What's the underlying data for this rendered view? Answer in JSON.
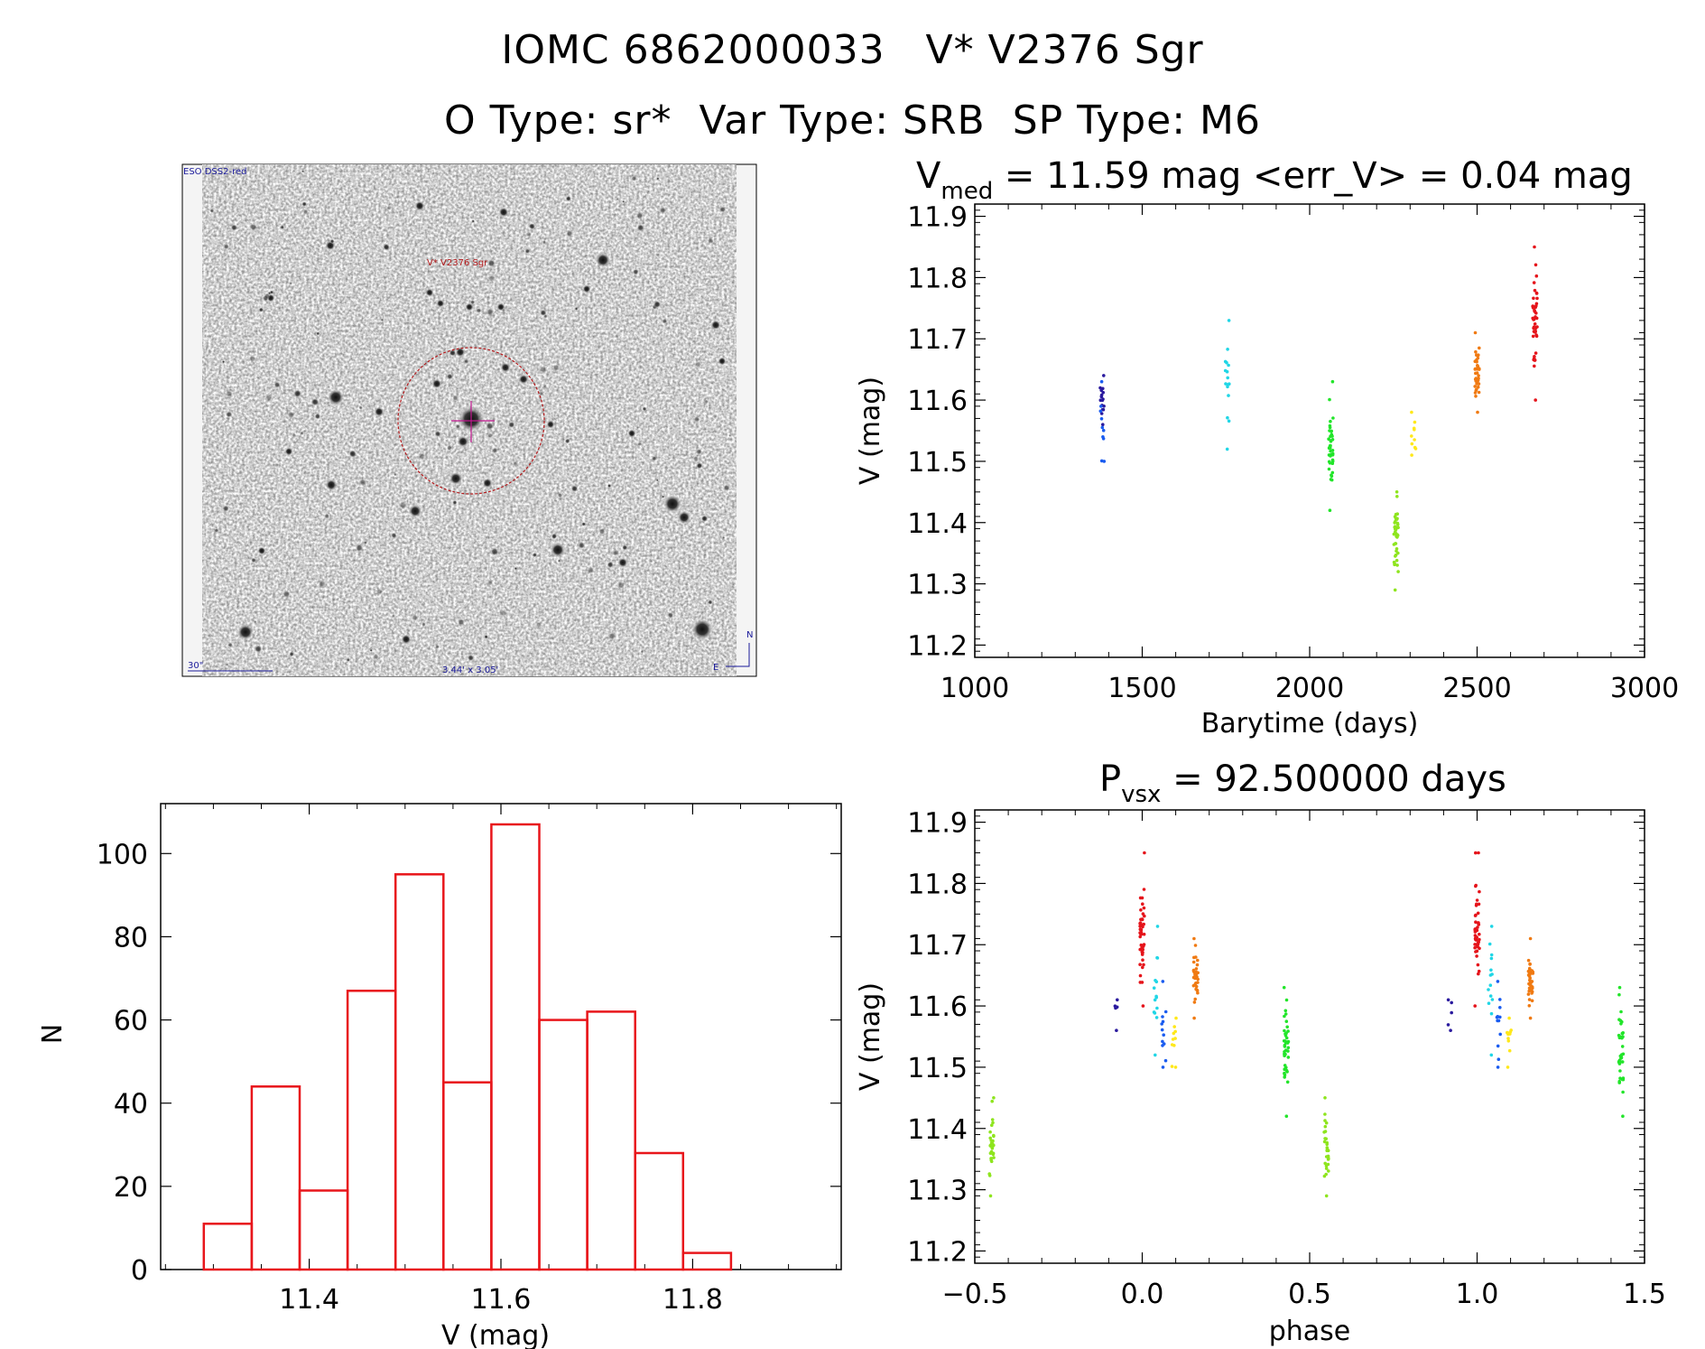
{
  "header": {
    "line1": "IOMC 6862000033   V* V2376 Sgr",
    "line2": "O Type: sr*  Var Type: SRB  SP Type: M6"
  },
  "sky_image": {
    "survey_label": "ESO DSS2-red",
    "target_label": "V* V2376 Sgr",
    "scale_label": "30\"",
    "fov_label": "3.44' x 3.05'",
    "north_label": "N",
    "east_label": "E"
  },
  "colors": {
    "hist": "#e8161b",
    "circle": "#b3191b",
    "crosshair": "#c2188f",
    "sky_blue": "#1a1a9a"
  },
  "chart_data": [
    {
      "type": "scatter",
      "id": "light_curve",
      "title_main": "V",
      "title_sub": "med",
      "title_rest": " = 11.59 mag <err_V> = 0.04 mag",
      "xlabel": "Barytime (days)",
      "ylabel": "V (mag)",
      "xlim": [
        1000,
        3000
      ],
      "ylim": [
        11.92,
        11.18
      ],
      "xticks": [
        "1000",
        "1500",
        "2000",
        "2500",
        "3000"
      ],
      "yticks": [
        "11.2",
        "11.3",
        "11.4",
        "11.5",
        "11.6",
        "11.7",
        "11.8",
        "11.9"
      ],
      "groups": [
        {
          "x": 1380,
          "color": "#2a1a9e",
          "range": [
            11.56,
            11.64
          ],
          "n": 16
        },
        {
          "x": 1382,
          "color": "#1a5cf0",
          "range": [
            11.5,
            11.63
          ],
          "n": 10
        },
        {
          "x": 1755,
          "color": "#20d6e6",
          "range": [
            11.52,
            11.73
          ],
          "n": 16
        },
        {
          "x": 2063,
          "color": "#22e52a",
          "range": [
            11.42,
            11.63
          ],
          "n": 40
        },
        {
          "x": 2258,
          "color": "#8ee51e",
          "range": [
            11.29,
            11.45
          ],
          "n": 40
        },
        {
          "x": 2310,
          "color": "#ffe81a",
          "range": [
            11.51,
            11.58
          ],
          "n": 10
        },
        {
          "x": 2500,
          "color": "#f07a12",
          "range": [
            11.58,
            11.71
          ],
          "n": 40
        },
        {
          "x": 2673,
          "color": "#e5141b",
          "range": [
            11.6,
            11.85
          ],
          "n": 45
        }
      ]
    },
    {
      "type": "bar",
      "id": "histogram",
      "xlabel": "V (mag)",
      "ylabel": "N",
      "xlim": [
        11.245,
        11.955
      ],
      "ylim": [
        0,
        112
      ],
      "xticks": [
        "11.4",
        "11.6",
        "11.8"
      ],
      "yticks": [
        "0",
        "20",
        "40",
        "60",
        "80",
        "100"
      ],
      "bin_edges": [
        11.29,
        11.34,
        11.39,
        11.44,
        11.49,
        11.54,
        11.59,
        11.64,
        11.69,
        11.74,
        11.79,
        11.84
      ],
      "bin_width": 0.05,
      "values": [
        11,
        44,
        19,
        67,
        95,
        45,
        107,
        60,
        62,
        28,
        4
      ]
    },
    {
      "type": "scatter",
      "id": "phase_curve",
      "title_main": "P",
      "title_sub": "vsx",
      "title_rest": " = 92.500000 days",
      "xlabel": "phase",
      "ylabel": "V (mag)",
      "xlim": [
        -0.5,
        1.5
      ],
      "ylim": [
        11.92,
        11.18
      ],
      "xticks": [
        "−0.5",
        "0.0",
        "0.5",
        "1.0",
        "1.5"
      ],
      "yticks": [
        "11.2",
        "11.3",
        "11.4",
        "11.5",
        "11.6",
        "11.7",
        "11.8",
        "11.9"
      ],
      "groups": [
        {
          "x": -0.45,
          "color": "#8ee51e",
          "range": [
            11.29,
            11.45
          ],
          "n": 30
        },
        {
          "x": -0.08,
          "color": "#2a1a9e",
          "range": [
            11.56,
            11.61
          ],
          "n": 5
        },
        {
          "x": 0.0,
          "color": "#e5141b",
          "range": [
            11.6,
            11.85
          ],
          "n": 45
        },
        {
          "x": 0.04,
          "color": "#20d6e6",
          "range": [
            11.52,
            11.73
          ],
          "n": 14
        },
        {
          "x": 0.065,
          "color": "#1a5cf0",
          "range": [
            11.5,
            11.64
          ],
          "n": 12
        },
        {
          "x": 0.095,
          "color": "#ffe81a",
          "range": [
            11.5,
            11.58
          ],
          "n": 10
        },
        {
          "x": 0.16,
          "color": "#f07a12",
          "range": [
            11.58,
            11.71
          ],
          "n": 40
        },
        {
          "x": 0.43,
          "color": "#22e52a",
          "range": [
            11.42,
            11.63
          ],
          "n": 40
        },
        {
          "x": 0.55,
          "color": "#8ee51e",
          "range": [
            11.29,
            11.45
          ],
          "n": 30
        },
        {
          "x": 0.92,
          "color": "#2a1a9e",
          "range": [
            11.56,
            11.61
          ],
          "n": 5
        },
        {
          "x": 1.0,
          "color": "#e5141b",
          "range": [
            11.6,
            11.85
          ],
          "n": 45
        },
        {
          "x": 1.04,
          "color": "#20d6e6",
          "range": [
            11.52,
            11.73
          ],
          "n": 14
        },
        {
          "x": 1.065,
          "color": "#1a5cf0",
          "range": [
            11.5,
            11.64
          ],
          "n": 12
        },
        {
          "x": 1.095,
          "color": "#ffe81a",
          "range": [
            11.5,
            11.58
          ],
          "n": 10
        },
        {
          "x": 1.16,
          "color": "#f07a12",
          "range": [
            11.58,
            11.71
          ],
          "n": 40
        },
        {
          "x": 1.43,
          "color": "#22e52a",
          "range": [
            11.42,
            11.63
          ],
          "n": 40
        }
      ]
    }
  ]
}
